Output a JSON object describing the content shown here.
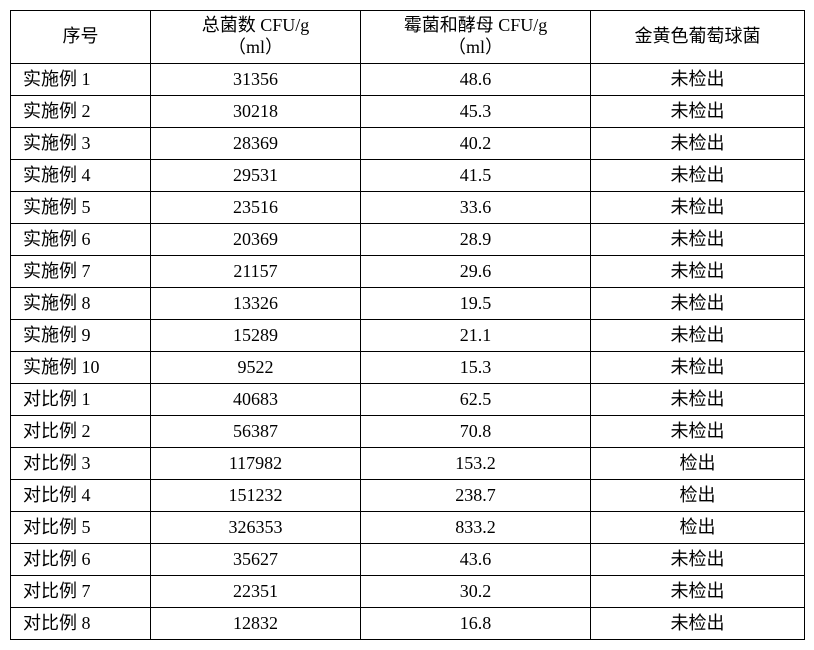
{
  "table": {
    "columns": [
      {
        "label": "序号"
      },
      {
        "line1": "总菌数 CFU/g",
        "line2": "（ml）"
      },
      {
        "line1": "霉菌和酵母 CFU/g",
        "line2": "（ml）"
      },
      {
        "label": "金黄色葡萄球菌"
      }
    ],
    "rows": [
      {
        "label": "实施例 1",
        "total": "31356",
        "mold": "48.6",
        "staph": "未检出"
      },
      {
        "label": "实施例 2",
        "total": "30218",
        "mold": "45.3",
        "staph": "未检出"
      },
      {
        "label": "实施例 3",
        "total": "28369",
        "mold": "40.2",
        "staph": "未检出"
      },
      {
        "label": "实施例 4",
        "total": "29531",
        "mold": "41.5",
        "staph": "未检出"
      },
      {
        "label": "实施例 5",
        "total": "23516",
        "mold": "33.6",
        "staph": "未检出"
      },
      {
        "label": "实施例 6",
        "total": "20369",
        "mold": "28.9",
        "staph": "未检出"
      },
      {
        "label": "实施例 7",
        "total": "21157",
        "mold": "29.6",
        "staph": "未检出"
      },
      {
        "label": "实施例 8",
        "total": "13326",
        "mold": "19.5",
        "staph": "未检出"
      },
      {
        "label": "实施例 9",
        "total": "15289",
        "mold": "21.1",
        "staph": "未检出"
      },
      {
        "label": "实施例 10",
        "total": "9522",
        "mold": "15.3",
        "staph": "未检出"
      },
      {
        "label": "对比例 1",
        "total": "40683",
        "mold": "62.5",
        "staph": "未检出"
      },
      {
        "label": "对比例 2",
        "total": "56387",
        "mold": "70.8",
        "staph": "未检出"
      },
      {
        "label": "对比例 3",
        "total": "117982",
        "mold": "153.2",
        "staph": "检出"
      },
      {
        "label": "对比例 4",
        "total": "151232",
        "mold": "238.7",
        "staph": "检出"
      },
      {
        "label": "对比例 5",
        "total": "326353",
        "mold": "833.2",
        "staph": "检出"
      },
      {
        "label": "对比例 6",
        "total": "35627",
        "mold": "43.6",
        "staph": "未检出"
      },
      {
        "label": "对比例 7",
        "total": "22351",
        "mold": "30.2",
        "staph": "未检出"
      },
      {
        "label": "对比例 8",
        "total": "12832",
        "mold": "16.8",
        "staph": "未检出"
      }
    ]
  }
}
